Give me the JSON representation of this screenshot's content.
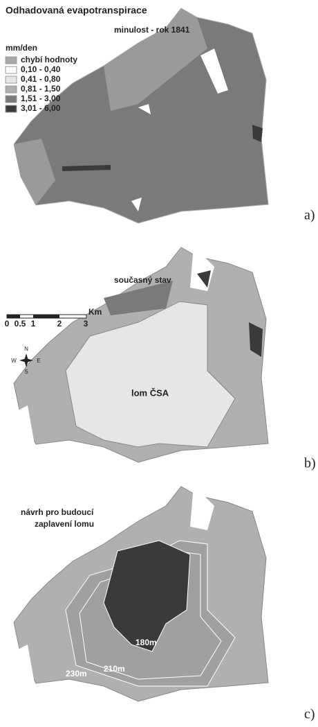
{
  "title": "Odhadovaná evapotranspirace",
  "panels": [
    {
      "label": "a)",
      "caption": "minulost - rok 1841"
    },
    {
      "label": "b)",
      "caption": "současný stav",
      "pit_label": "lom ČSA"
    },
    {
      "label": "c)",
      "caption_lines": [
        "návrh pro budoucí",
        "zaplavení lomu"
      ],
      "contours": [
        "230m",
        "210m",
        "180m"
      ]
    }
  ],
  "legend": {
    "title": "mm/den",
    "items": [
      {
        "label": "chybí hodnoty",
        "color": "#a9a9a9"
      },
      {
        "label": "0,10 - 0,40",
        "color": "#ffffff"
      },
      {
        "label": "0,41 - 0,80",
        "color": "#e6e6e6"
      },
      {
        "label": "0,81 - 1,50",
        "color": "#b0b0b0"
      },
      {
        "label": "1,51 - 3,00",
        "color": "#7a7a7a"
      },
      {
        "label": "3,01 - 6,00",
        "color": "#3a3a3a"
      }
    ]
  },
  "scale_bar": {
    "unit": "Km",
    "ticks": [
      "0",
      "0.5",
      "1",
      "2",
      "3"
    ]
  },
  "compass": {
    "n": "N",
    "s": "S",
    "w": "W",
    "e": "E"
  }
}
